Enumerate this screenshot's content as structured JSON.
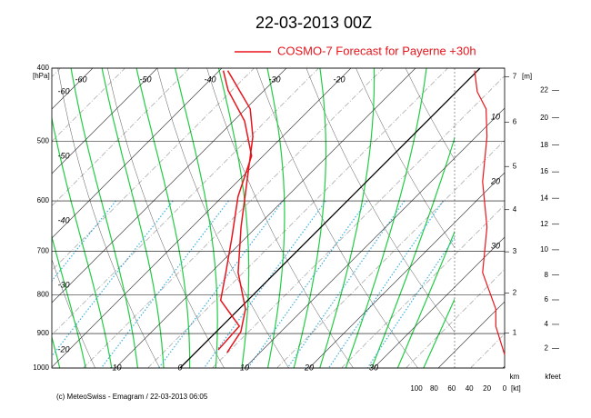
{
  "chart_data": {
    "type": "emagram",
    "title": "22-03-2013  00Z",
    "legend_position": "top",
    "ylim": [
      400,
      1000
    ],
    "yticks": [
      400,
      500,
      600,
      700,
      800,
      900,
      1000
    ],
    "y_unit": "[hPa]",
    "series": [
      {
        "name": "COSMO-7 Forecast for Payerne   +30h",
        "color": "#e8141b",
        "temperature": [
          4.9,
          3.8,
          1.0,
          -5.8,
          -12.4,
          -18.5,
          -24.6,
          -29.3,
          -38.7
        ],
        "pressure": [
          954,
          895,
          835,
          747,
          650,
          566,
          493,
          453,
          403
        ]
      },
      {
        "color": "#e8141b",
        "temperature": [
          3.1,
          2.7,
          -4.2,
          -7.7,
          -12.4,
          -17.6,
          -21.8,
          -28.3,
          -35.6,
          -39.4
        ],
        "pressure": [
          946,
          880,
          813,
          747,
          668,
          592,
          523,
          470,
          428,
          403
        ]
      }
    ],
    "wind": {
      "color": "#e8141b",
      "speed": [
        0,
        10,
        10,
        25,
        20,
        25,
        20,
        21,
        31,
        34
      ],
      "pressure": [
        960,
        880,
        835,
        747,
        650,
        566,
        493,
        453,
        430,
        403
      ]
    },
    "isotherm_labels": {
      "top": [
        -60,
        -50,
        -40,
        -30,
        -20
      ],
      "left": [
        -60,
        -50,
        -40,
        -30,
        -20
      ],
      "bottom": [
        -10,
        0,
        10,
        20,
        30
      ],
      "right": [
        10,
        20,
        30
      ]
    },
    "height_km": {
      "label": "km",
      "unit": "[m]",
      "ticks": [
        1,
        2,
        3,
        4,
        5,
        6,
        7
      ]
    },
    "height_kfeet": {
      "label": "kfeet",
      "ticks": [
        2,
        4,
        6,
        8,
        10,
        12,
        14,
        16,
        18,
        20,
        22
      ]
    },
    "wind_axis": {
      "xlim": [
        100,
        0
      ],
      "xticks": [
        100,
        80,
        60,
        40,
        20,
        0
      ],
      "unit": "[kt]"
    },
    "footer": "(c) MeteoSwiss - Emagram  /  22-03-2013  06:05"
  }
}
